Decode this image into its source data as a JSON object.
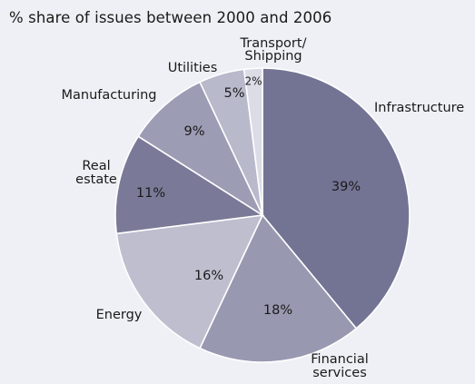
{
  "chart_data": {
    "type": "pie",
    "title": "% share of issues between 2000 and 2006",
    "slices": [
      {
        "label": [
          "Infrastructure"
        ],
        "value": 39,
        "value_label": "39%",
        "color": "#737494"
      },
      {
        "label": [
          "Financial",
          "services"
        ],
        "value": 18,
        "value_label": "18%",
        "color": "#9898b1"
      },
      {
        "label": [
          "Energy"
        ],
        "value": 16,
        "value_label": "16%",
        "color": "#bebecf"
      },
      {
        "label": [
          "Real",
          "estate"
        ],
        "value": 11,
        "value_label": "11%",
        "color": "#7a7a98"
      },
      {
        "label": [
          "Manufacturing"
        ],
        "value": 9,
        "value_label": "9%",
        "color": "#9c9cb5"
      },
      {
        "label": [
          "Utilities"
        ],
        "value": 5,
        "value_label": "5%",
        "color": "#b9b9cc"
      },
      {
        "label": [
          "Transport/",
          "Shipping"
        ],
        "value": 2,
        "value_label": "2%",
        "color": "#dcdce7"
      }
    ],
    "start": "12 o'clock",
    "direction": "clockwise"
  }
}
